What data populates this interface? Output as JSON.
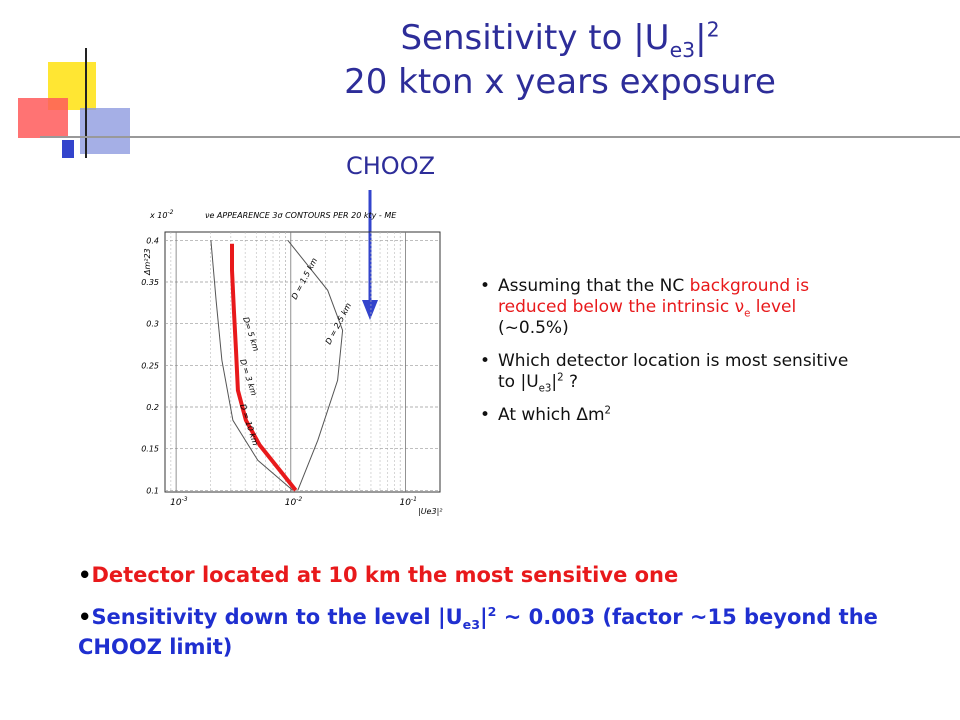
{
  "title": {
    "lines": [
      [
        {
          "text": "Sensitivity to |U"
        },
        {
          "text": "e3",
          "script": "sub"
        },
        {
          "text": "|"
        },
        {
          "text": "2",
          "script": "sup"
        }
      ],
      [
        {
          "text": "20 kton x  years exposure"
        }
      ]
    ]
  },
  "annotation": "CHOOZ",
  "chart_data": {
    "type": "line",
    "title": "νe APPEARENCE 3σ CONTOURS PER 20 kty - ME",
    "y_multiplier": {
      "label": "x 10",
      "exponent": "-2"
    },
    "y_label": "Δm²23",
    "x_label": "|Ue3|²",
    "xscale": "log",
    "grid": true,
    "xlim": [
      0.0008,
      0.2
    ],
    "ylim": [
      0.098,
      0.41
    ],
    "xticks": [
      {
        "value": 0.001,
        "label": "10",
        "exponent": "-3"
      },
      {
        "value": 0.01,
        "label": "10",
        "exponent": "-2"
      },
      {
        "value": 0.1,
        "label": "10",
        "exponent": "-1"
      }
    ],
    "yticks": [
      0.1,
      0.15,
      0.2,
      0.25,
      0.3,
      0.35,
      0.4
    ],
    "series": [
      {
        "name": "D= 5 km",
        "color": "#555555",
        "x": [
          0.00201,
          0.00223,
          0.00251,
          0.00313,
          0.00516,
          0.0104
        ],
        "y": [
          0.4,
          0.328,
          0.256,
          0.184,
          0.136,
          0.1
        ]
      },
      {
        "name": "D = 2.5 km",
        "color": "#555555",
        "x": [
          0.00942,
          0.021,
          0.0283,
          0.0256,
          0.0172,
          0.0115
        ],
        "y": [
          0.4,
          0.34,
          0.292,
          0.232,
          0.16,
          0.1
        ]
      },
      {
        "name": "D = 10 km",
        "color": "#e8191b",
        "x": [
          0.00307,
          0.00307,
          0.00319,
          0.00333,
          0.00346,
          0.00406,
          0.00537,
          0.00802,
          0.01104
        ],
        "y": [
          0.396,
          0.364,
          0.316,
          0.268,
          0.22,
          0.184,
          0.154,
          0.124,
          0.1
        ]
      }
    ],
    "curve_labels": [
      "D = 1.5 km",
      "D = 3 km"
    ]
  },
  "bullets": [
    [
      {
        "text": "Assuming that the NC "
      },
      {
        "text": "background is reduced below the intrinsic ",
        "color": "#e8191b"
      },
      {
        "text": "ν",
        "color": "#e8191b"
      },
      {
        "text": "e",
        "script": "sub",
        "color": "#e8191b"
      },
      {
        "text": " level",
        "color": "#e8191b"
      },
      {
        "text": " (~0.5%)"
      }
    ],
    [
      {
        "text": "Which detector location is most sensitive to |U"
      },
      {
        "text": "e3",
        "script": "sub"
      },
      {
        "text": "|"
      },
      {
        "text": "2",
        "script": "sup"
      },
      {
        "text": " ?"
      }
    ],
    [
      {
        "text": "At which "
      },
      {
        "text": "Δm"
      },
      {
        "text": "2",
        "script": "sup"
      }
    ]
  ],
  "conclusions": [
    [
      {
        "text": "Detector located at 10 km the most sensitive one",
        "color": "#e8191b"
      }
    ],
    [
      {
        "text": "Sensitivity down to the level |U",
        "color": "#1f2fd0"
      },
      {
        "text": "e3",
        "script": "sub",
        "color": "#1f2fd0"
      },
      {
        "text": "|",
        "color": "#1f2fd0"
      },
      {
        "text": "2",
        "script": "sup",
        "color": "#1f2fd0"
      },
      {
        "text": " ~ 0.003 (factor ~15 beyond the CHOOZ limit)",
        "color": "#1f2fd0"
      }
    ]
  ]
}
